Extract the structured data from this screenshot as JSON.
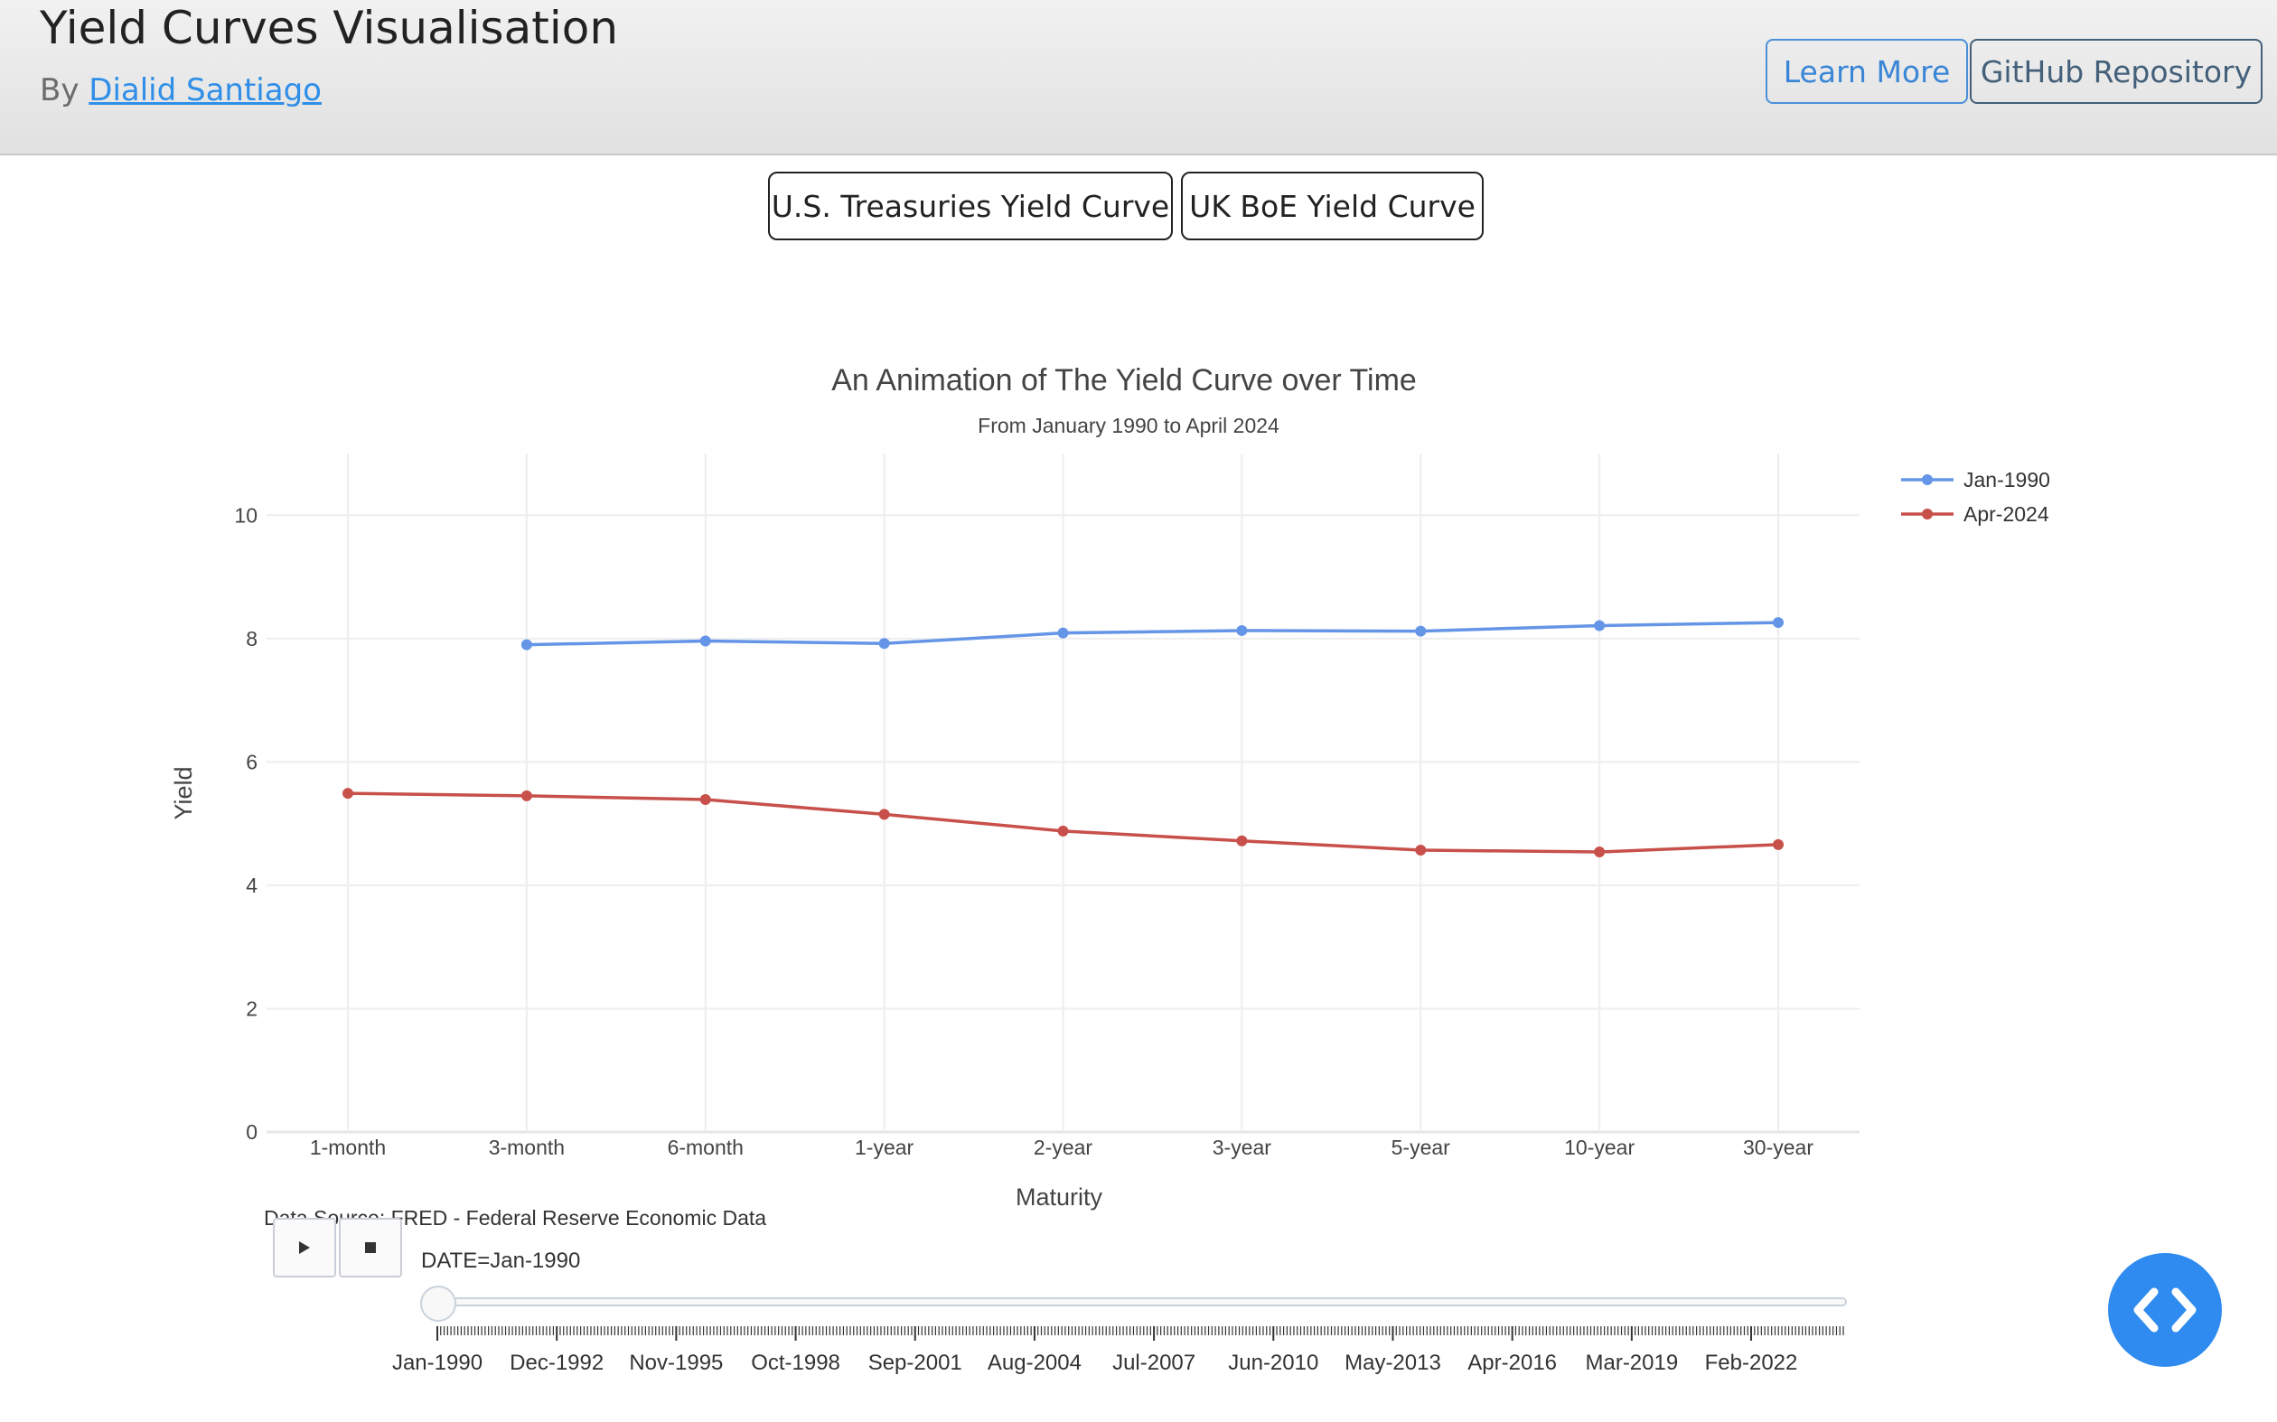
{
  "header": {
    "title": "Yield Curves Visualisation",
    "by_prefix": "By",
    "author": "Dialid Santiago",
    "learn_more": "Learn More",
    "github": "GitHub Repository"
  },
  "selector": {
    "us": "U.S. Treasuries Yield Curve",
    "uk": "UK BoE Yield Curve"
  },
  "chart_data": {
    "type": "line",
    "title": "An Animation of The Yield Curve over Time",
    "subtitle": "From January 1990 to April 2024",
    "xlabel": "Maturity",
    "ylabel": "Yield",
    "categories": [
      "1-month",
      "3-month",
      "6-month",
      "1-year",
      "2-year",
      "3-year",
      "5-year",
      "10-year",
      "30-year"
    ],
    "ylim": [
      0,
      11
    ],
    "yticks": [
      0,
      2,
      4,
      6,
      8,
      10
    ],
    "grid": true,
    "legend_position": "top-right",
    "series": [
      {
        "name": "Jan-1990",
        "color": "#6495e6",
        "values": [
          null,
          7.9,
          7.96,
          7.92,
          8.09,
          8.13,
          8.12,
          8.21,
          8.26
        ]
      },
      {
        "name": "Apr-2024",
        "color": "#c8504a",
        "values": [
          5.49,
          5.45,
          5.39,
          5.15,
          4.88,
          4.72,
          4.57,
          4.54,
          4.66
        ]
      }
    ],
    "source": "Data Source: FRED - Federal Reserve Economic Data"
  },
  "animation": {
    "play_icon": "play-icon",
    "stop_icon": "stop-icon",
    "current_label": "DATE=Jan-1990",
    "position": 0,
    "date_ticks": [
      "Jan-1990",
      "Dec-1992",
      "Nov-1995",
      "Oct-1998",
      "Sep-2001",
      "Aug-2004",
      "Jul-2007",
      "Jun-2010",
      "May-2013",
      "Apr-2016",
      "Mar-2019",
      "Feb-2022"
    ]
  },
  "fab": {
    "icon": "code-icon",
    "color": "#2f8bef"
  }
}
